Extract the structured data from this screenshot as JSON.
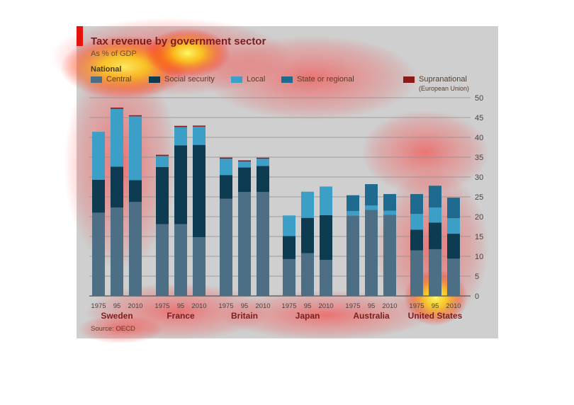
{
  "chart_data": {
    "type": "bar",
    "stacked": true,
    "title": "Tax revenue by government sector",
    "subtitle": "As % of GDP",
    "legend_title": "National",
    "legend": [
      {
        "label": "Central",
        "color": "#4c6f86"
      },
      {
        "label": "Social security",
        "color": "#0d3c52"
      },
      {
        "label": "Local",
        "color": "#3b9fc7"
      },
      {
        "label": "State or regional",
        "color": "#1f6a8f"
      },
      {
        "label": "Supranational",
        "note": "(European Union)",
        "color": "#8b1a1a"
      }
    ],
    "ylim": [
      0,
      50
    ],
    "yticks": [
      0,
      5,
      10,
      15,
      20,
      25,
      30,
      35,
      40,
      45,
      50
    ],
    "groups": [
      {
        "country": "Sweden",
        "bars": [
          {
            "year": "1975",
            "central": 21,
            "social_security": 8.3,
            "local": 12.1,
            "state_regional": 0,
            "supranational": 0
          },
          {
            "year": "95",
            "central": 22.3,
            "social_security": 10.3,
            "local": 14.6,
            "state_regional": 0,
            "supranational": 0.3
          },
          {
            "year": "2010",
            "central": 23.7,
            "social_security": 5.5,
            "local": 16.1,
            "state_regional": 0,
            "supranational": 0.2
          }
        ]
      },
      {
        "country": "France",
        "bars": [
          {
            "year": "1975",
            "central": 18.1,
            "social_security": 14.4,
            "local": 2.8,
            "state_regional": 0,
            "supranational": 0.3
          },
          {
            "year": "95",
            "central": 18.1,
            "social_security": 19.9,
            "local": 4.6,
            "state_regional": 0,
            "supranational": 0.3
          },
          {
            "year": "2010",
            "central": 14.8,
            "social_security": 23.3,
            "local": 4.6,
            "state_regional": 0,
            "supranational": 0.2
          }
        ]
      },
      {
        "country": "Britain",
        "bars": [
          {
            "year": "1975",
            "central": 24.5,
            "social_security": 6,
            "local": 4.1,
            "state_regional": 0,
            "supranational": 0.3
          },
          {
            "year": "95",
            "central": 26.2,
            "social_security": 6.2,
            "local": 1.5,
            "state_regional": 0,
            "supranational": 0.3
          },
          {
            "year": "2010",
            "central": 26.2,
            "social_security": 6.6,
            "local": 1.8,
            "state_regional": 0,
            "supranational": 0.2
          }
        ]
      },
      {
        "country": "Japan",
        "bars": [
          {
            "year": "1975",
            "central": 9.3,
            "social_security": 5.8,
            "local": 5.2,
            "state_regional": 0,
            "supranational": 0
          },
          {
            "year": "95",
            "central": 10.8,
            "social_security": 8.9,
            "local": 6.6,
            "state_regional": 0,
            "supranational": 0
          },
          {
            "year": "2010",
            "central": 9.1,
            "social_security": 11.3,
            "local": 7.2,
            "state_regional": 0,
            "supranational": 0
          }
        ]
      },
      {
        "country": "Australia",
        "bars": [
          {
            "year": "1975",
            "central": 20.3,
            "social_security": 0,
            "local": 1.1,
            "state_regional": 4,
            "supranational": 0
          },
          {
            "year": "95",
            "central": 21.7,
            "social_security": 0,
            "local": 1.1,
            "state_regional": 5.4,
            "supranational": 0
          },
          {
            "year": "2010",
            "central": 20.5,
            "social_security": 0,
            "local": 1,
            "state_regional": 4.2,
            "supranational": 0
          }
        ]
      },
      {
        "country": "United States",
        "bars": [
          {
            "year": "1975",
            "central": 11.5,
            "social_security": 5.2,
            "local": 4,
            "state_regional": 5,
            "supranational": 0
          },
          {
            "year": "95",
            "central": 11.8,
            "social_security": 6.7,
            "local": 3.8,
            "state_regional": 5.5,
            "supranational": 0
          },
          {
            "year": "2010",
            "central": 9.4,
            "social_security": 6.3,
            "local": 3.9,
            "state_regional": 5.2,
            "supranational": 0
          }
        ]
      }
    ],
    "source": "Source: OECD",
    "grid": true
  }
}
